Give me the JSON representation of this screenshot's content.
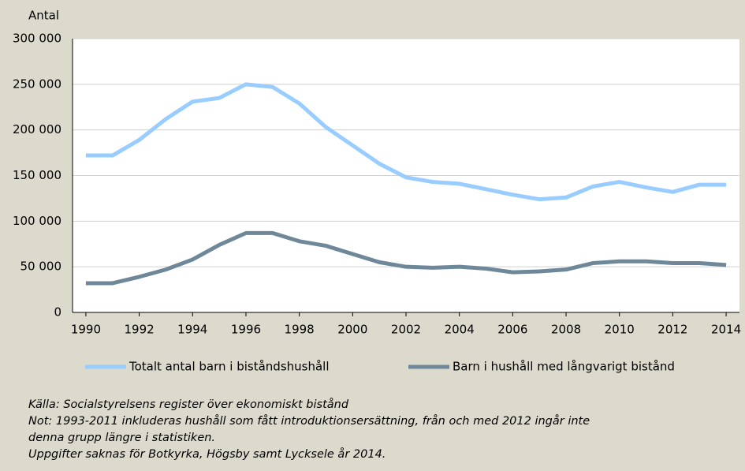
{
  "chart_data": {
    "type": "line",
    "ylabel": "Antal",
    "x": [
      1990,
      1991,
      1992,
      1993,
      1994,
      1995,
      1996,
      1997,
      1998,
      1999,
      2000,
      2001,
      2002,
      2003,
      2004,
      2005,
      2006,
      2007,
      2008,
      2009,
      2010,
      2011,
      2012,
      2013,
      2014
    ],
    "xlim": [
      1989.5,
      2014.5
    ],
    "xticks": [
      1990,
      1992,
      1994,
      1996,
      1998,
      2000,
      2002,
      2004,
      2006,
      2008,
      2010,
      2012,
      2014
    ],
    "ylim": [
      0,
      300000
    ],
    "yticks": [
      0,
      {
        "value": 50000,
        "label": "50 000"
      },
      {
        "value": 100000,
        "label": "100 000"
      },
      {
        "value": 150000,
        "label": "150 000"
      },
      {
        "value": 200000,
        "label": "200 000"
      },
      {
        "value": 250000,
        "label": "250 000"
      },
      {
        "value": 300000,
        "label": "300 000"
      }
    ],
    "grid": true,
    "legend": "bottom",
    "series": [
      {
        "name": "Totalt antal barn i biståndshushåll",
        "color": "#99ccff",
        "values": [
          172000,
          172000,
          189000,
          212000,
          231000,
          235000,
          250000,
          247000,
          229000,
          203000,
          183000,
          163000,
          148000,
          143000,
          141000,
          135000,
          129000,
          124000,
          126000,
          138000,
          143000,
          137000,
          132000,
          140000,
          140000
        ]
      },
      {
        "name": "Barn i hushåll med långvarigt bistånd",
        "color": "#6f8899",
        "values": [
          32000,
          32000,
          39000,
          47000,
          58000,
          74000,
          87000,
          87000,
          78000,
          73000,
          64000,
          55000,
          50000,
          49000,
          50000,
          48000,
          44000,
          45000,
          47000,
          54000,
          56000,
          56000,
          54000,
          54000,
          52000
        ]
      }
    ],
    "notes": [
      "Källa: Socialstyrelsens register över ekonomiskt bistånd",
      "Not: 1993-2011 inkluderas hushåll som fått introduktionsersättning, från och med 2012 ingår inte",
      "denna grupp längre i statistiken.",
      "Uppgifter saknas för Botkyrka, Högsby samt Lycksele år 2014."
    ]
  }
}
